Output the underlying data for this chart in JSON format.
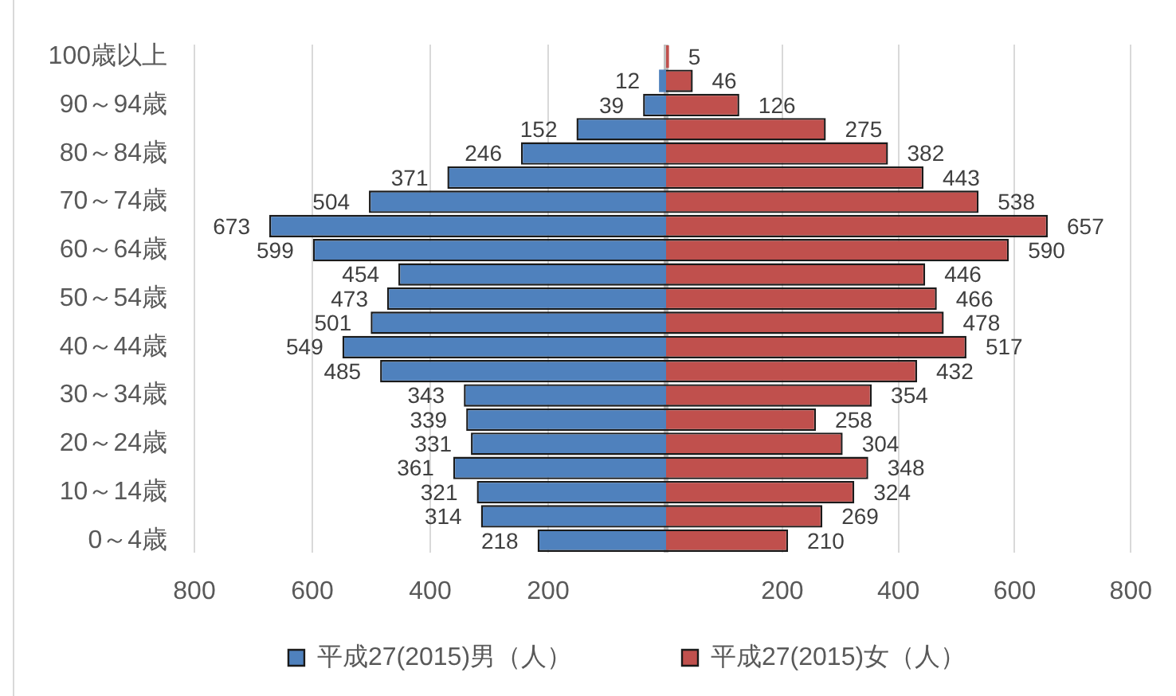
{
  "chart_data": [
    {
      "type": "bar",
      "orientation": "horizontal",
      "categories": [
        "100歳以上",
        null,
        "90～94歳",
        null,
        "80～84歳",
        null,
        "70～74歳",
        null,
        "60～64歳",
        null,
        "50～54歳",
        null,
        "40～44歳",
        null,
        "30～34歳",
        null,
        "20～24歳",
        null,
        "10～14歳",
        null,
        "0～4歳"
      ],
      "series": [
        {
          "name": "平成27(2015)男（人）",
          "color": "#4f81bd",
          "values": [
            null,
            12,
            39,
            152,
            246,
            371,
            504,
            673,
            599,
            454,
            473,
            501,
            549,
            485,
            343,
            339,
            331,
            361,
            321,
            314,
            218
          ]
        }
      ],
      "xlim": [
        800,
        0
      ],
      "xticks": [
        800,
        600,
        400,
        200
      ],
      "grid": "x",
      "legend": "bottom",
      "data_labels": true
    },
    {
      "type": "bar",
      "orientation": "horizontal",
      "categories": [
        null,
        null,
        null,
        null,
        null,
        null,
        null,
        null,
        null,
        null,
        null,
        null,
        null,
        null,
        null,
        null,
        null,
        null,
        null,
        null,
        null
      ],
      "series": [
        {
          "name": "平成27(2015)女（人）",
          "color": "#c0504d",
          "values": [
            5,
            46,
            126,
            275,
            382,
            443,
            538,
            657,
            590,
            446,
            466,
            478,
            517,
            432,
            354,
            258,
            304,
            348,
            324,
            269,
            210
          ]
        }
      ],
      "xlim": [
        0,
        800
      ],
      "xticks": [
        200,
        400,
        600,
        800
      ],
      "grid": "x",
      "legend": "bottom",
      "data_labels": true,
      "tick_labels": "x"
    }
  ]
}
